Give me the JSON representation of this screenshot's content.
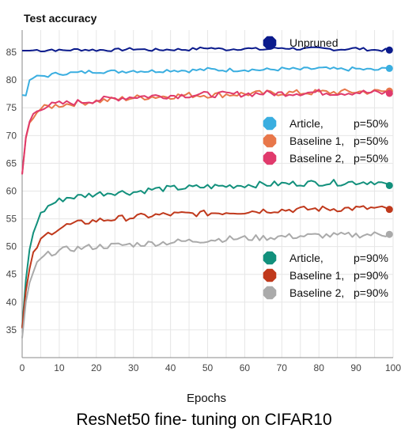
{
  "chart_data": {
    "type": "line",
    "title": "ResNet50 fine- tuning on CIFAR10",
    "ylabel": "Test accuracy",
    "xlabel": "Epochs",
    "xlim": [
      0,
      100
    ],
    "ylim": [
      30,
      89
    ],
    "xticks": [
      0,
      10,
      20,
      30,
      40,
      50,
      60,
      70,
      80,
      90,
      100
    ],
    "yticks": [
      35,
      40,
      45,
      50,
      55,
      60,
      65,
      70,
      75,
      80,
      85
    ],
    "grid": true,
    "legends": [
      {
        "placement": "top-right",
        "entries": [
          {
            "name": "Unpruned",
            "p": ""
          }
        ]
      },
      {
        "placement": "upper-right",
        "entries": [
          {
            "name": "Article,",
            "p": "p=50%"
          },
          {
            "name": "Baseline 1,",
            "p": "p=50%"
          },
          {
            "name": "Baseline 2,",
            "p": "p=50%"
          }
        ]
      },
      {
        "placement": "lower-right",
        "entries": [
          {
            "name": "Article,",
            "p": "p=90%"
          },
          {
            "name": "Baseline 1,",
            "p": "p=90%"
          },
          {
            "name": "Baseline 2,",
            "p": "p=90%"
          }
        ]
      }
    ],
    "series": [
      {
        "key": "unpruned",
        "legend": 0,
        "entry": 0,
        "color": "#0a1a8c",
        "x": [
          0,
          2,
          4,
          6,
          8,
          10,
          15,
          20,
          25,
          30,
          35,
          40,
          45,
          50,
          55,
          60,
          65,
          70,
          75,
          80,
          85,
          90,
          95,
          99
        ],
        "y": [
          85.3,
          85.3,
          85.4,
          85.3,
          85.5,
          85.3,
          85.5,
          85.4,
          85.4,
          85.6,
          85.4,
          85.5,
          85.5,
          85.8,
          85.5,
          85.7,
          85.5,
          85.8,
          85.6,
          85.7,
          85.5,
          85.7,
          85.4,
          85.4
        ]
      },
      {
        "key": "article50",
        "legend": 1,
        "entry": 0,
        "color": "#3aaee0",
        "x": [
          0,
          1,
          2,
          3,
          5,
          7,
          10,
          15,
          20,
          25,
          30,
          35,
          40,
          45,
          50,
          55,
          60,
          65,
          70,
          75,
          80,
          85,
          90,
          95,
          99
        ],
        "y": [
          77.3,
          77.2,
          80.0,
          80.4,
          80.7,
          80.8,
          81.2,
          81.3,
          81.6,
          81.5,
          81.7,
          81.6,
          81.8,
          81.7,
          81.9,
          81.8,
          81.9,
          81.8,
          82.0,
          81.9,
          82.1,
          81.9,
          82.0,
          81.8,
          82.1
        ]
      },
      {
        "key": "baseline1_50",
        "legend": 1,
        "entry": 1,
        "color": "#e8774a",
        "x": [
          0,
          1,
          2,
          3,
          4,
          5,
          7,
          10,
          15,
          20,
          25,
          30,
          35,
          40,
          45,
          50,
          55,
          60,
          65,
          70,
          75,
          80,
          85,
          90,
          95,
          99
        ],
        "y": [
          63.0,
          69.5,
          72.3,
          73.6,
          74.3,
          74.8,
          75.2,
          75.5,
          75.9,
          76.2,
          76.5,
          76.8,
          77.0,
          77.1,
          77.3,
          77.3,
          77.4,
          77.5,
          77.6,
          77.7,
          77.7,
          77.8,
          77.8,
          77.9,
          77.9,
          78.0
        ]
      },
      {
        "key": "baseline2_50",
        "legend": 1,
        "entry": 2,
        "color": "#e03a6c",
        "x": [
          0,
          1,
          2,
          3,
          4,
          5,
          7,
          10,
          15,
          20,
          25,
          30,
          35,
          40,
          45,
          50,
          55,
          60,
          65,
          70,
          75,
          80,
          85,
          90,
          95,
          99
        ],
        "y": [
          63.0,
          69.7,
          72.5,
          73.8,
          74.5,
          75.0,
          75.4,
          75.7,
          76.0,
          76.4,
          76.7,
          77.0,
          77.1,
          77.2,
          77.3,
          77.4,
          77.4,
          77.5,
          77.6,
          77.6,
          77.7,
          77.8,
          77.7,
          77.8,
          77.7,
          77.6
        ]
      },
      {
        "key": "article90",
        "legend": 2,
        "entry": 0,
        "color": "#12907c",
        "x": [
          0,
          1,
          2,
          3,
          4,
          5,
          6,
          7,
          8,
          10,
          12,
          15,
          18,
          20,
          25,
          30,
          35,
          40,
          45,
          50,
          55,
          60,
          65,
          70,
          75,
          80,
          85,
          90,
          95,
          99
        ],
        "y": [
          35.5,
          44.0,
          49.5,
          52.5,
          54.5,
          55.8,
          56.6,
          57.2,
          57.7,
          58.3,
          58.8,
          59.0,
          59.3,
          59.5,
          59.8,
          59.8,
          60.3,
          60.5,
          60.6,
          60.8,
          60.9,
          61.1,
          61.2,
          61.3,
          61.4,
          61.5,
          61.5,
          61.6,
          61.7,
          61.0
        ]
      },
      {
        "key": "baseline1_90",
        "legend": 2,
        "entry": 1,
        "color": "#c0391c",
        "x": [
          0,
          1,
          2,
          3,
          4,
          5,
          6,
          7,
          8,
          10,
          12,
          15,
          18,
          20,
          25,
          30,
          35,
          40,
          45,
          50,
          55,
          60,
          65,
          70,
          75,
          80,
          85,
          90,
          95,
          99
        ],
        "y": [
          35.3,
          42.0,
          46.0,
          48.5,
          50.0,
          51.0,
          51.8,
          52.3,
          52.7,
          53.3,
          53.8,
          54.2,
          54.5,
          54.7,
          55.0,
          55.3,
          55.6,
          55.8,
          55.9,
          56.0,
          56.2,
          56.3,
          56.5,
          56.6,
          56.7,
          56.8,
          56.8,
          56.9,
          56.9,
          56.7
        ]
      },
      {
        "key": "baseline2_90",
        "legend": 2,
        "entry": 2,
        "color": "#aaaaaa",
        "x": [
          0,
          1,
          2,
          3,
          4,
          5,
          6,
          7,
          8,
          10,
          12,
          15,
          18,
          20,
          25,
          30,
          35,
          40,
          45,
          50,
          55,
          60,
          65,
          70,
          75,
          80,
          85,
          90,
          95,
          99
        ],
        "y": [
          33.5,
          40.0,
          43.5,
          45.5,
          46.8,
          47.6,
          48.2,
          48.6,
          48.9,
          49.2,
          49.5,
          49.7,
          49.9,
          50.0,
          50.2,
          50.4,
          50.6,
          50.8,
          51.0,
          51.2,
          51.4,
          51.5,
          51.6,
          51.8,
          51.9,
          52.0,
          52.0,
          52.1,
          52.2,
          52.2
        ]
      }
    ]
  }
}
